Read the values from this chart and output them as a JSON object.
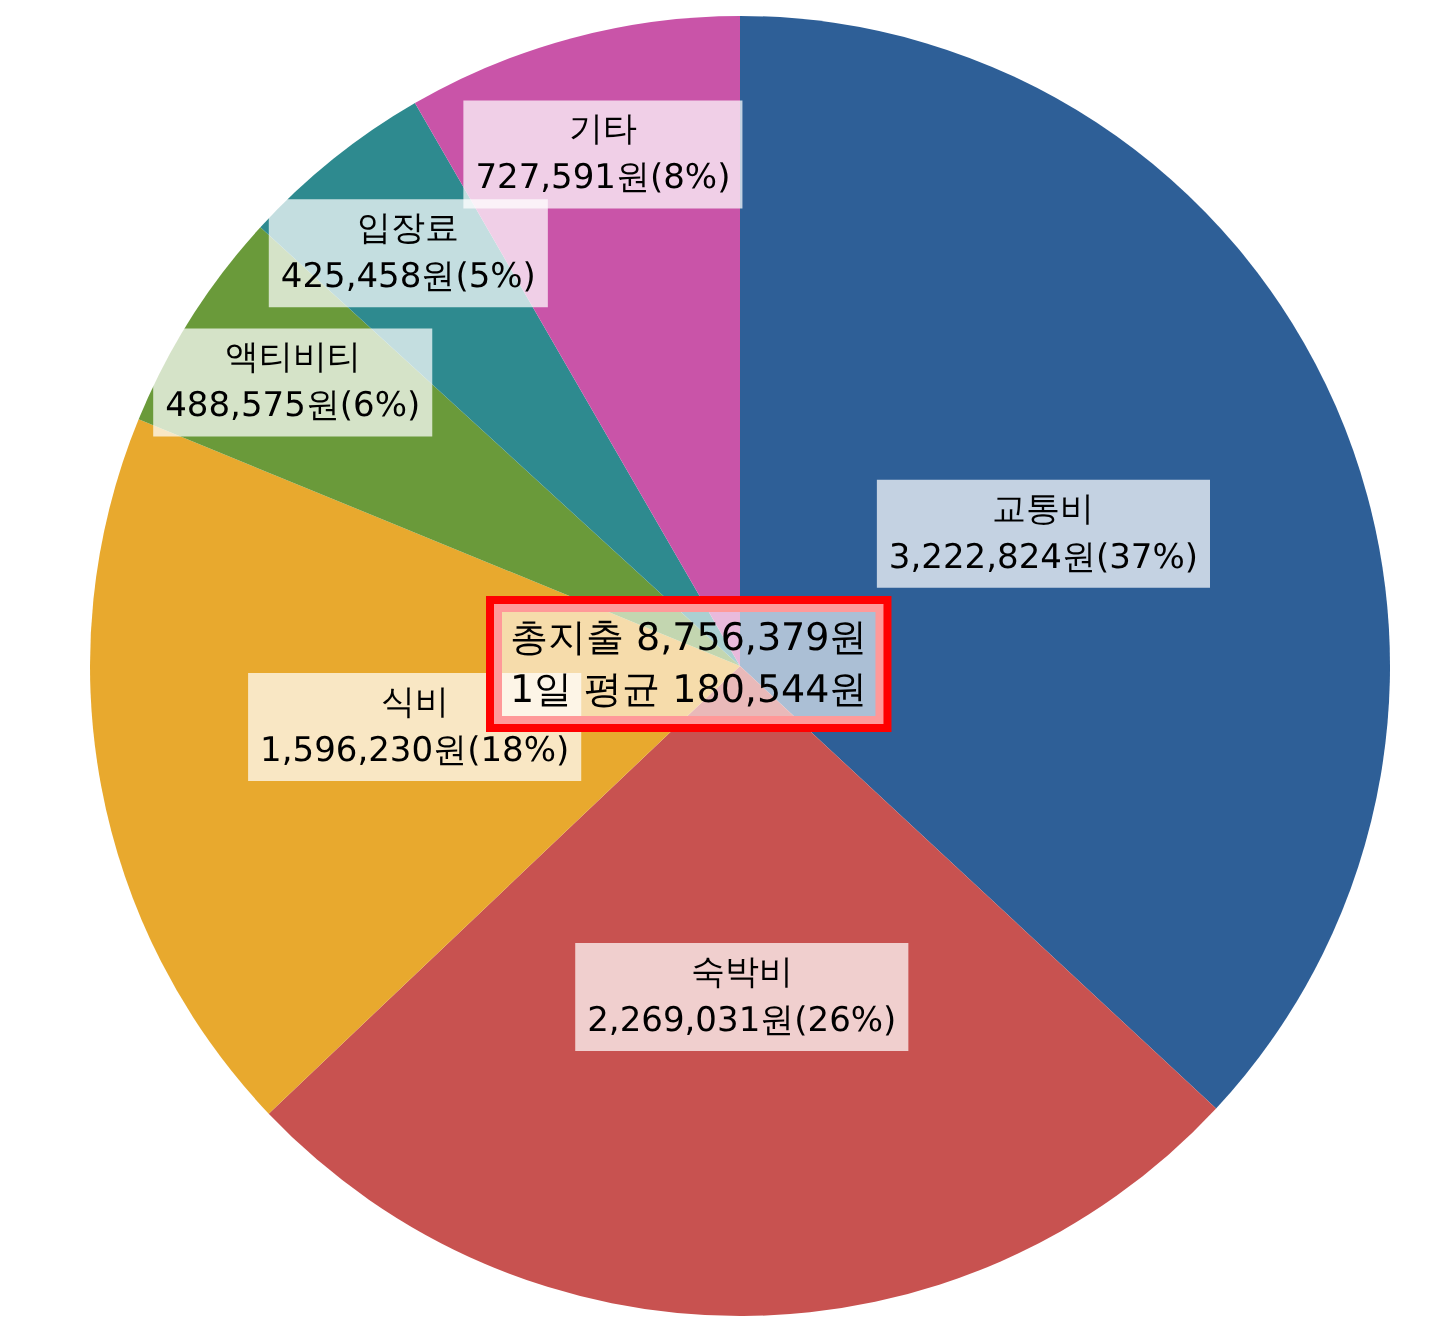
{
  "chart_data": {
    "type": "pie",
    "categories": [
      "교통비",
      "숙박비",
      "식비",
      "액티비티",
      "입장료",
      "기타"
    ],
    "values": [
      3222824,
      2269031,
      1596230,
      488575,
      425458,
      727591
    ],
    "value_labels": [
      "3,222,824원(37%)",
      "2,269,031원(26%)",
      "1,596,230원(18%)",
      "488,575원(6%)",
      "425,458원(5%)",
      "727,591원(8%)"
    ],
    "colors": [
      "#2e5f97",
      "#c85250",
      "#e8a92e",
      "#6a9a3a",
      "#2e8a8f",
      "#c954a8"
    ],
    "annotations": [
      "총지출 8,756,379원\n1일 평균 180,544원"
    ],
    "legend": false
  }
}
